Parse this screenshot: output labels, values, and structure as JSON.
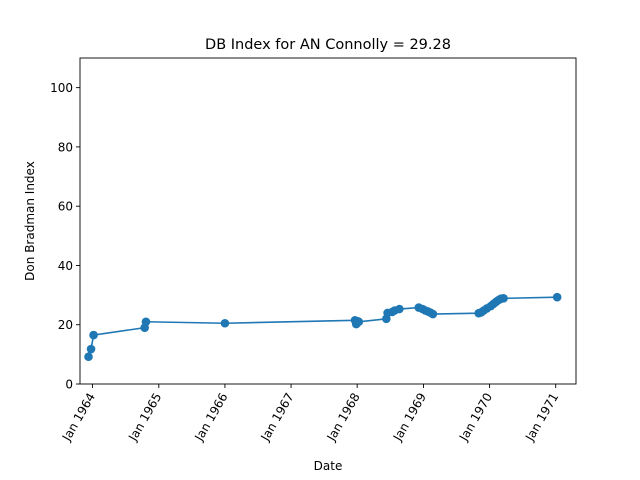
{
  "chart_data": {
    "type": "line",
    "title": "DB Index for AN Connolly = 29.28",
    "xlabel": "Date",
    "ylabel": "Don Bradman Index",
    "ylim": [
      0,
      110
    ],
    "xlim": [
      "1963-10-24",
      "1971-04-23"
    ],
    "yticks": [
      0,
      20,
      40,
      60,
      80,
      100
    ],
    "xticks": [
      {
        "date": "1964-01-01",
        "label": "Jan 1964"
      },
      {
        "date": "1965-01-01",
        "label": "Jan 1965"
      },
      {
        "date": "1966-01-01",
        "label": "Jan 1966"
      },
      {
        "date": "1967-01-01",
        "label": "Jan 1967"
      },
      {
        "date": "1968-01-01",
        "label": "Jan 1968"
      },
      {
        "date": "1969-01-01",
        "label": "Jan 1969"
      },
      {
        "date": "1970-01-01",
        "label": "Jan 1970"
      },
      {
        "date": "1971-01-01",
        "label": "Jan 1971"
      }
    ],
    "grid": false,
    "series": [
      {
        "color": "#1f77b4",
        "points": [
          {
            "x": "1963-12-10",
            "y": 9.2
          },
          {
            "x": "1963-12-24",
            "y": 11.8
          },
          {
            "x": "1964-01-07",
            "y": 16.5
          },
          {
            "x": "1964-10-15",
            "y": 19.0
          },
          {
            "x": "1964-10-22",
            "y": 21.0
          },
          {
            "x": "1966-01-01",
            "y": 20.5
          },
          {
            "x": "1967-12-20",
            "y": 21.5
          },
          {
            "x": "1967-12-27",
            "y": 20.2
          },
          {
            "x": "1968-01-03",
            "y": 21.2
          },
          {
            "x": "1968-01-10",
            "y": 21.0
          },
          {
            "x": "1968-06-10",
            "y": 22.0
          },
          {
            "x": "1968-06-17",
            "y": 24.0
          },
          {
            "x": "1968-07-12",
            "y": 24.3
          },
          {
            "x": "1968-07-26",
            "y": 24.8
          },
          {
            "x": "1968-08-21",
            "y": 25.3
          },
          {
            "x": "1968-12-06",
            "y": 25.8
          },
          {
            "x": "1968-12-27",
            "y": 25.3
          },
          {
            "x": "1969-01-11",
            "y": 24.8
          },
          {
            "x": "1969-01-25",
            "y": 24.5
          },
          {
            "x": "1969-02-08",
            "y": 24.1
          },
          {
            "x": "1969-02-22",
            "y": 23.6
          },
          {
            "x": "1969-11-02",
            "y": 23.9
          },
          {
            "x": "1969-11-16",
            "y": 24.2
          },
          {
            "x": "1969-11-30",
            "y": 24.8
          },
          {
            "x": "1969-12-17",
            "y": 25.5
          },
          {
            "x": "1970-01-08",
            "y": 26.3
          },
          {
            "x": "1970-01-22",
            "y": 27.0
          },
          {
            "x": "1970-02-05",
            "y": 27.7
          },
          {
            "x": "1970-02-19",
            "y": 28.3
          },
          {
            "x": "1970-03-05",
            "y": 28.8
          },
          {
            "x": "1970-03-19",
            "y": 28.9
          },
          {
            "x": "1971-01-09",
            "y": 29.3
          }
        ]
      }
    ]
  }
}
